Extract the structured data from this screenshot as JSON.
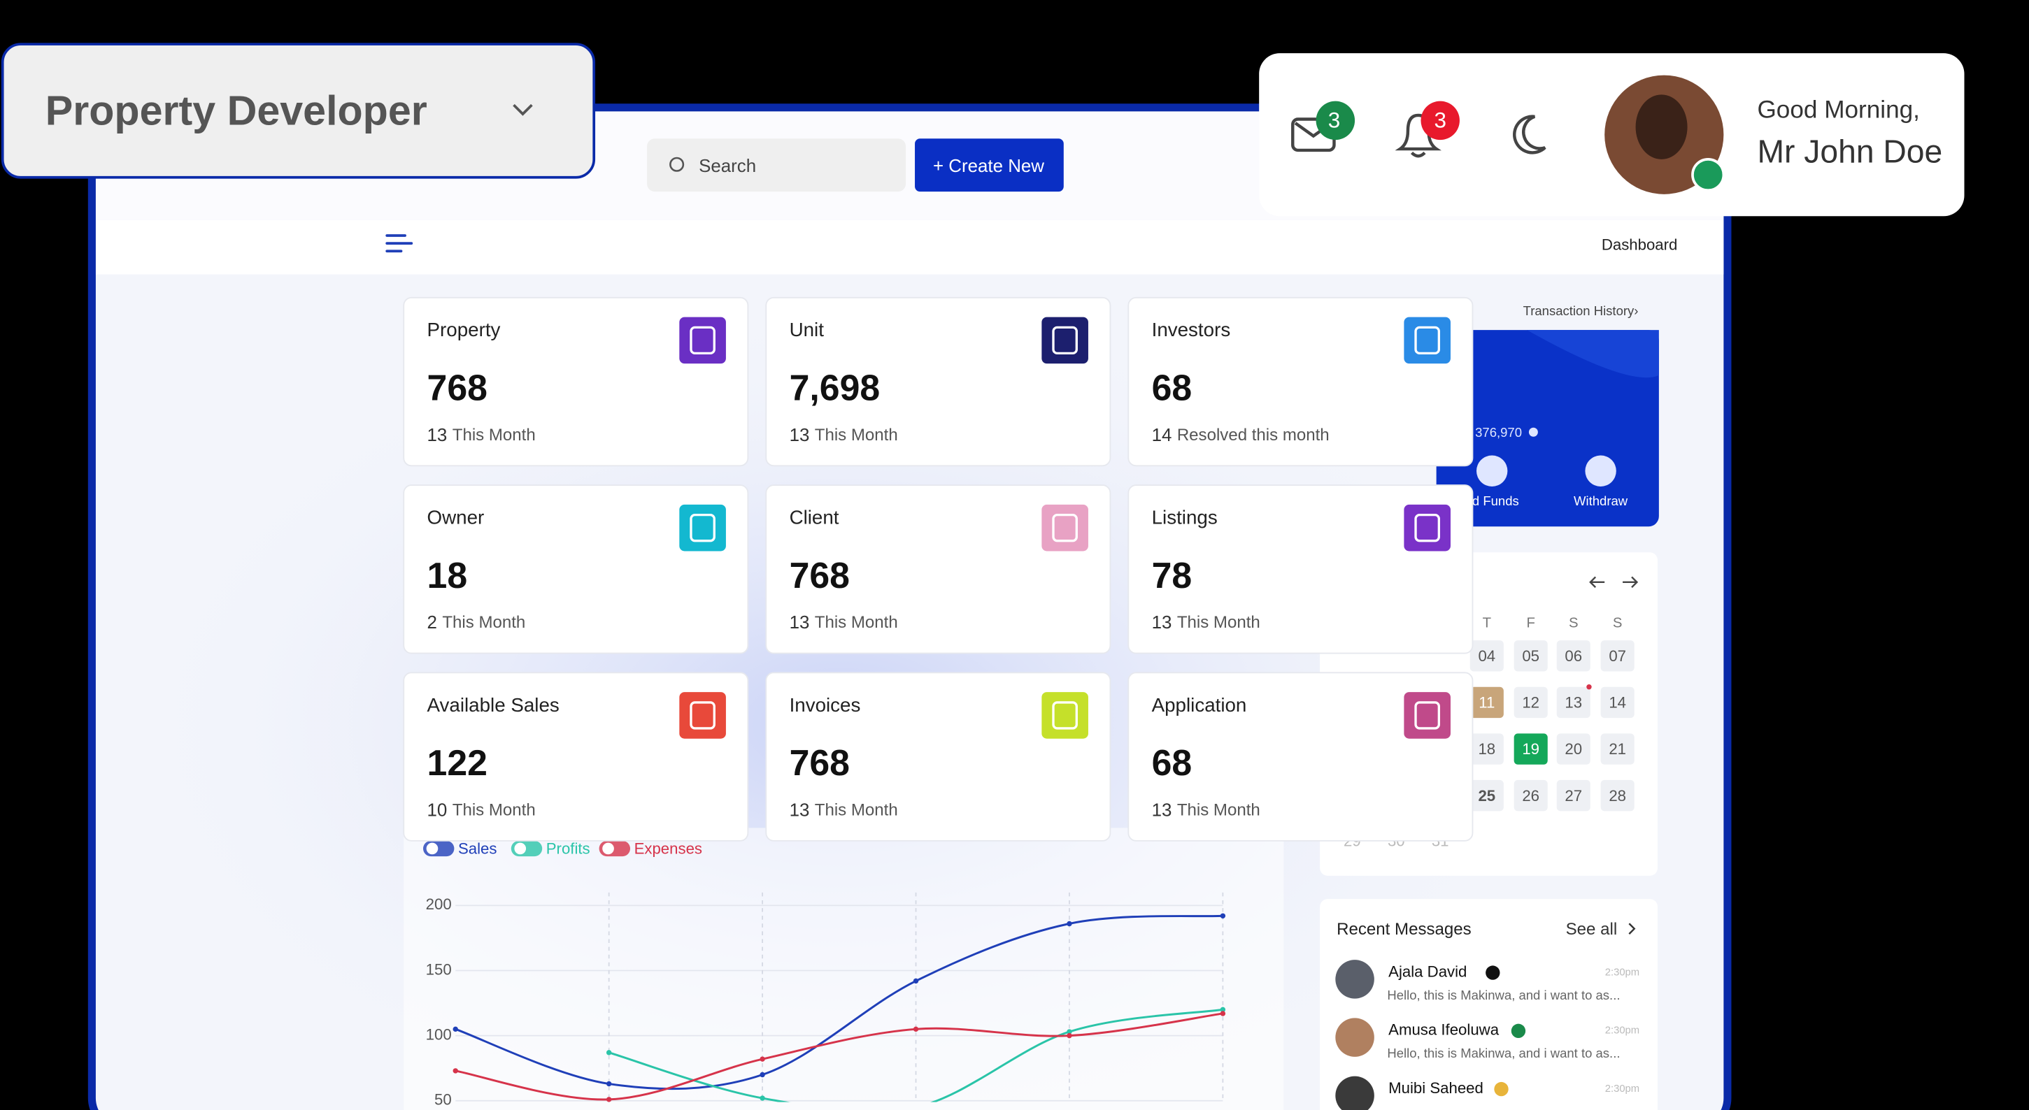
{
  "role_selector": {
    "label": "Property Developer"
  },
  "search": {
    "placeholder": "Search",
    "button": "+ Create New"
  },
  "header": {
    "mail_badge": "3",
    "bell_badge": "3",
    "greeting": "Good Morning,",
    "user": "Mr John Doe"
  },
  "nav": {
    "breadcrumb": "Dashboard"
  },
  "stats": [
    {
      "label": "Property",
      "value": "768",
      "count": "13",
      "note": "This Month",
      "color": "#6a2fc4"
    },
    {
      "label": "Unit",
      "value": "7,698",
      "count": "13",
      "note": "This Month",
      "color": "#1c1f6e"
    },
    {
      "label": "Investors",
      "value": "68",
      "count": "14",
      "note": "Resolved this month",
      "color": "#2a8be6"
    },
    {
      "label": "Owner",
      "value": "18",
      "count": "2",
      "note": "This Month",
      "color": "#13b8d0"
    },
    {
      "label": "Client",
      "value": "768",
      "count": "13",
      "note": "This Month",
      "color": "#e8a2c4"
    },
    {
      "label": "Listings",
      "value": "78",
      "count": "13",
      "note": "This Month",
      "color": "#7a32c8"
    },
    {
      "label": "Available Sales",
      "value": "122",
      "count": "10",
      "note": "This Month",
      "color": "#e8493a"
    },
    {
      "label": "Invoices",
      "value": "768",
      "count": "13",
      "note": "This Month",
      "color": "#c5e02a"
    },
    {
      "label": "Application",
      "value": "68",
      "count": "13",
      "note": "This Month",
      "color": "#c04a8a"
    }
  ],
  "wallet": {
    "history": "Transaction History›",
    "balance": "376,970",
    "actions": [
      "nd Funds",
      "Withdraw"
    ]
  },
  "calendar": {
    "weekdays": [
      "T",
      "F",
      "S",
      "S"
    ],
    "rows": [
      [
        "04",
        "05",
        "06",
        "07"
      ],
      [
        "11",
        "12",
        "13",
        "14"
      ],
      [
        "18",
        "19",
        "20",
        "21"
      ],
      [
        "25",
        "26",
        "27",
        "28"
      ]
    ],
    "last_row": [
      "29",
      "30",
      "31"
    ]
  },
  "messages": {
    "title": "Recent Messages",
    "see_all": "See all",
    "items": [
      {
        "name": "Ajala David",
        "time": "2:30pm",
        "text": "Hello, this is Makinwa, and i want to as..."
      },
      {
        "name": "Amusa Ifeoluwa",
        "time": "2:30pm",
        "text": "Hello, this is Makinwa, and i want to as..."
      },
      {
        "name": "Muibi Saheed",
        "time": "2:30pm",
        "text": ""
      }
    ]
  },
  "chart_data": {
    "type": "line",
    "categories": [
      null,
      null,
      null,
      null,
      null,
      null
    ],
    "series": [
      {
        "name": "Sales",
        "color": "#1f3fb8",
        "values": [
          105,
          63,
          70,
          142,
          186,
          192
        ]
      },
      {
        "name": "Profits",
        "color": "#2ac4a8",
        "values": [
          null,
          87,
          52,
          45,
          103,
          120
        ]
      },
      {
        "name": "Expenses",
        "color": "#d6334a",
        "values": [
          73,
          51,
          82,
          105,
          100,
          117
        ]
      }
    ],
    "ylim": [
      50,
      200
    ],
    "yticks": [
      200,
      150,
      100,
      50
    ],
    "grid": true,
    "legend": "top-left"
  }
}
